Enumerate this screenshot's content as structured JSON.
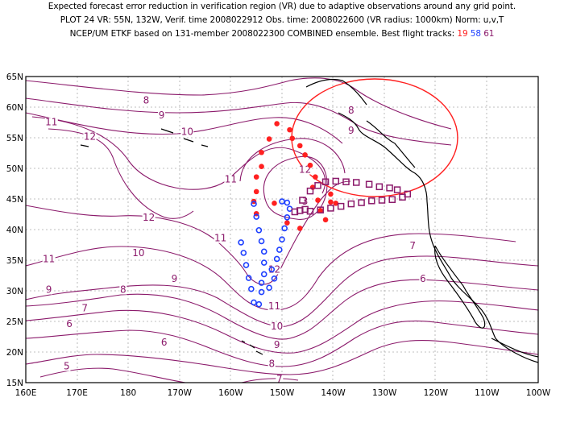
{
  "header": {
    "line1": "Expected forecast error reduction in verification region (VR) due to adaptive observations around any grid point.",
    "line2": "PLOT 24 VR: 55N, 132W, Verif. time 2008022912 Obs. time: 2008022600 (VR radius: 1000km) Norm: u,v,T",
    "line3_text": "NCEP/UM ETKF based on 131-member 2008022300 COMBINED ensemble.  Best flight tracks:",
    "track_ids": [
      "19",
      "58",
      "61"
    ]
  },
  "axes": {
    "lat_labels": [
      "65N",
      "60N",
      "55N",
      "50N",
      "45N",
      "40N",
      "35N",
      "30N",
      "25N",
      "20N",
      "15N"
    ],
    "lon_labels": [
      "160E",
      "170E",
      "180",
      "170W",
      "160W",
      "150W",
      "140W",
      "130W",
      "120W",
      "110W",
      "100W"
    ]
  },
  "contour_labels": [
    {
      "text": "8",
      "lon": -176.5,
      "lat": 60.7
    },
    {
      "text": "9",
      "lon": -173.5,
      "lat": 58.3
    },
    {
      "text": "10",
      "lon": -168.5,
      "lat": 55.6
    },
    {
      "text": "11",
      "lon": 165,
      "lat": 57.2
    },
    {
      "text": "12",
      "lon": 172.5,
      "lat": 54.8
    },
    {
      "text": "11",
      "lon": -160,
      "lat": 47.8
    },
    {
      "text": "12",
      "lon": -176,
      "lat": 41.6
    },
    {
      "text": "11",
      "lon": -162,
      "lat": 38.2
    },
    {
      "text": "10",
      "lon": -178,
      "lat": 35.8
    },
    {
      "text": "11",
      "lon": 164.5,
      "lat": 34.8
    },
    {
      "text": "9",
      "lon": -171,
      "lat": 31.6
    },
    {
      "text": "9",
      "lon": 164.5,
      "lat": 29.8
    },
    {
      "text": "8",
      "lon": 179,
      "lat": 29.8
    },
    {
      "text": "7",
      "lon": 171.5,
      "lat": 26.8
    },
    {
      "text": "6",
      "lon": 168.5,
      "lat": 24.2
    },
    {
      "text": "6",
      "lon": -173,
      "lat": 21.2
    },
    {
      "text": "5",
      "lon": 168,
      "lat": 17.3
    },
    {
      "text": "8",
      "lon": -136.5,
      "lat": 59.1
    },
    {
      "text": "9",
      "lon": -136.5,
      "lat": 55.8
    },
    {
      "text": "12",
      "lon": -145.5,
      "lat": 49.4
    },
    {
      "text": "12",
      "lon": -151.5,
      "lat": 33.1
    },
    {
      "text": "11",
      "lon": -151.5,
      "lat": 27.1
    },
    {
      "text": "10",
      "lon": -151,
      "lat": 23.8
    },
    {
      "text": "9",
      "lon": -151,
      "lat": 20.8
    },
    {
      "text": "8",
      "lon": -152,
      "lat": 17.7
    },
    {
      "text": "7",
      "lon": -150.5,
      "lat": 15.2
    },
    {
      "text": "7",
      "lon": -124.5,
      "lat": 37.0
    },
    {
      "text": "6",
      "lon": -122.5,
      "lat": 31.6
    },
    {
      "text": "3",
      "lon": -145.5,
      "lat": 44.2
    }
  ],
  "tracks": {
    "track_19": {
      "id": "19",
      "color": "#ff2020",
      "marker": "filled-circle",
      "points": [
        [
          -151,
          57.3
        ],
        [
          -152.5,
          54.8
        ],
        [
          -154,
          52.6
        ],
        [
          -154,
          50.3
        ],
        [
          -155,
          48.6
        ],
        [
          -155,
          46.2
        ],
        [
          -155.5,
          44.6
        ],
        [
          -155,
          42.6
        ],
        [
          -151.5,
          44.3
        ],
        [
          -149,
          41.1
        ],
        [
          -146.5,
          40.2
        ],
        [
          -148.5,
          56.3
        ],
        [
          -148,
          54.9
        ],
        [
          -146.5,
          53.7
        ],
        [
          -145.5,
          52.2
        ],
        [
          -144.5,
          50.5
        ],
        [
          -143.5,
          48.6
        ],
        [
          -144,
          46.9
        ],
        [
          -143,
          44.8
        ],
        [
          -142.5,
          43.1
        ],
        [
          -141.5,
          41.6
        ],
        [
          -140.5,
          44.5
        ],
        [
          -139.5,
          44.3
        ],
        [
          -140.5,
          45.8
        ]
      ]
    },
    "track_58": {
      "id": "58",
      "color": "#1e40ff",
      "marker": "open-circle",
      "points": [
        [
          -155.5,
          44.2
        ],
        [
          -155,
          42.1
        ],
        [
          -154.5,
          39.9
        ],
        [
          -154,
          38.1
        ],
        [
          -153.5,
          36.4
        ],
        [
          -153.5,
          34.6
        ],
        [
          -153.5,
          32.7
        ],
        [
          -154,
          31.3
        ],
        [
          -154,
          29.8
        ],
        [
          -154.5,
          27.8
        ],
        [
          -155.5,
          28.1
        ],
        [
          -156,
          30.3
        ],
        [
          -156.5,
          32.1
        ],
        [
          -157,
          34.2
        ],
        [
          -157.5,
          36.2
        ],
        [
          -158,
          37.9
        ],
        [
          -152.5,
          30.5
        ],
        [
          -151.5,
          32.0
        ],
        [
          -152,
          33.5
        ],
        [
          -151,
          35.2
        ],
        [
          -150.5,
          36.7
        ],
        [
          -150,
          38.4
        ],
        [
          -149.5,
          40.2
        ],
        [
          -149,
          42.0
        ],
        [
          -148.5,
          43.4
        ],
        [
          -149,
          44.4
        ],
        [
          -150,
          44.6
        ]
      ]
    },
    "track_61": {
      "id": "61",
      "color": "#8b1a6b",
      "marker": "open-square",
      "points": [
        [
          -146,
          44.8
        ],
        [
          -144.5,
          46.3
        ],
        [
          -143,
          47.2
        ],
        [
          -141.5,
          47.8
        ],
        [
          -139.5,
          47.9
        ],
        [
          -137.5,
          47.8
        ],
        [
          -135.5,
          47.7
        ],
        [
          -133,
          47.4
        ],
        [
          -131,
          47.0
        ],
        [
          -129,
          46.8
        ],
        [
          -127.5,
          46.5
        ],
        [
          -125.5,
          45.8
        ],
        [
          -126.5,
          45.3
        ],
        [
          -128.5,
          44.9
        ],
        [
          -130.5,
          44.8
        ],
        [
          -132.5,
          44.7
        ],
        [
          -134.5,
          44.4
        ],
        [
          -136.5,
          44.2
        ],
        [
          -138.5,
          43.8
        ],
        [
          -140.5,
          43.5
        ],
        [
          -142.5,
          43.2
        ],
        [
          -144.5,
          43.0
        ],
        [
          -146.5,
          43.1
        ],
        [
          -147.5,
          42.9
        ],
        [
          -145.5,
          43.3
        ]
      ]
    }
  },
  "verification_region": {
    "center_lat": 55,
    "center_lon": -132,
    "radius_km": 1000,
    "color": "#ff2020"
  }
}
